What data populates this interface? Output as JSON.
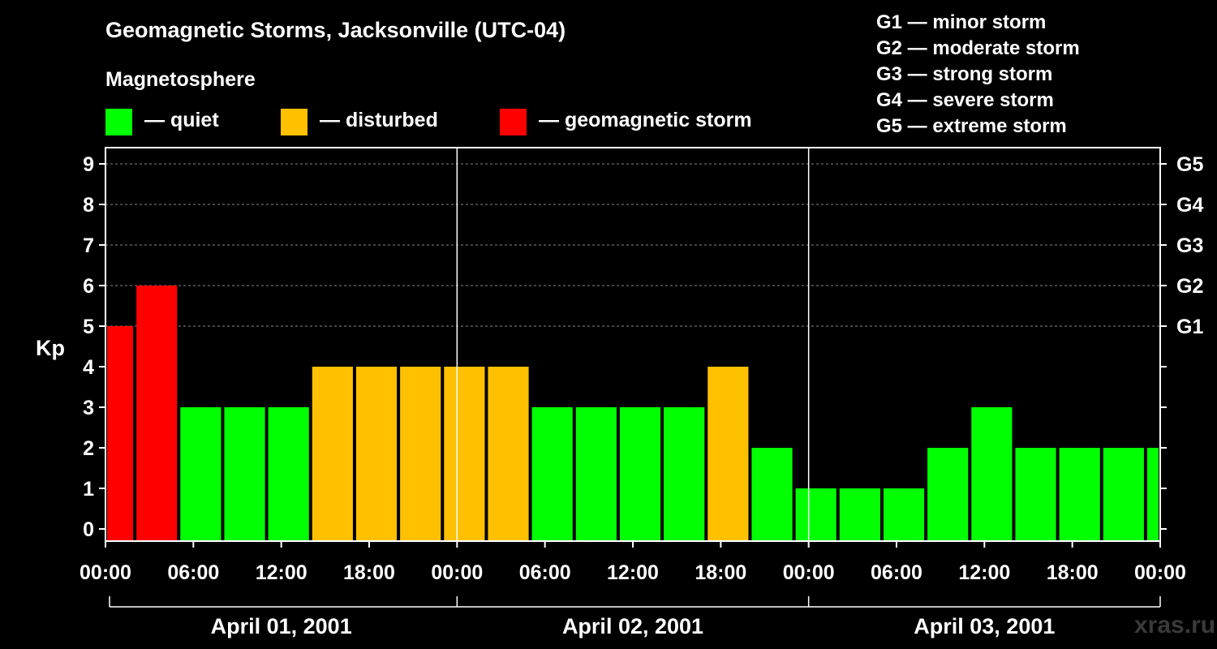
{
  "title": "Geomagnetic Storms, Jacksonville (UTC-04)",
  "legend": {
    "heading": "Magnetosphere",
    "items": [
      {
        "color": "#00ff00",
        "label": "— quiet"
      },
      {
        "color": "#ffc000",
        "label": "— disturbed"
      },
      {
        "color": "#ff0000",
        "label": "— geomagnetic storm"
      }
    ]
  },
  "storm_scale": [
    "G1 — minor storm",
    "G2 — moderate storm",
    "G3 — strong storm",
    "G4 — severe storm",
    "G5 — extreme storm"
  ],
  "watermark": "xras.ru",
  "chart_data": {
    "type": "bar",
    "ylabel": "Kp",
    "ylim": [
      0,
      9
    ],
    "y_ticks": [
      "0",
      "1",
      "2",
      "3",
      "4",
      "5",
      "6",
      "7",
      "8",
      "9"
    ],
    "right_axis_labels": [
      {
        "kp": 5,
        "label": "G1"
      },
      {
        "kp": 6,
        "label": "G2"
      },
      {
        "kp": 7,
        "label": "G3"
      },
      {
        "kp": 8,
        "label": "G4"
      },
      {
        "kp": 9,
        "label": "G5"
      }
    ],
    "x_tick_labels": [
      "00:00",
      "06:00",
      "12:00",
      "18:00",
      "00:00",
      "06:00",
      "12:00",
      "18:00",
      "00:00",
      "06:00",
      "12:00",
      "18:00",
      "00:00"
    ],
    "dates": [
      "April 01, 2001",
      "April 02, 2001",
      "April 03, 2001"
    ],
    "grid": true,
    "colors": {
      "quiet": "#00ff00",
      "disturbed": "#ffc000",
      "storm": "#ff0000"
    },
    "bars": [
      {
        "start_hour": 0,
        "end_hour": 2,
        "kp": 5
      },
      {
        "start_hour": 2,
        "end_hour": 5,
        "kp": 6
      },
      {
        "start_hour": 5,
        "end_hour": 8,
        "kp": 3
      },
      {
        "start_hour": 8,
        "end_hour": 11,
        "kp": 3
      },
      {
        "start_hour": 11,
        "end_hour": 14,
        "kp": 3
      },
      {
        "start_hour": 14,
        "end_hour": 17,
        "kp": 4
      },
      {
        "start_hour": 17,
        "end_hour": 20,
        "kp": 4
      },
      {
        "start_hour": 20,
        "end_hour": 23,
        "kp": 4
      },
      {
        "start_hour": 23,
        "end_hour": 26,
        "kp": 4
      },
      {
        "start_hour": 26,
        "end_hour": 29,
        "kp": 4
      },
      {
        "start_hour": 29,
        "end_hour": 32,
        "kp": 3
      },
      {
        "start_hour": 32,
        "end_hour": 35,
        "kp": 3
      },
      {
        "start_hour": 35,
        "end_hour": 38,
        "kp": 3
      },
      {
        "start_hour": 38,
        "end_hour": 41,
        "kp": 3
      },
      {
        "start_hour": 41,
        "end_hour": 44,
        "kp": 4
      },
      {
        "start_hour": 44,
        "end_hour": 47,
        "kp": 2
      },
      {
        "start_hour": 47,
        "end_hour": 50,
        "kp": 1
      },
      {
        "start_hour": 50,
        "end_hour": 53,
        "kp": 1
      },
      {
        "start_hour": 53,
        "end_hour": 56,
        "kp": 1
      },
      {
        "start_hour": 56,
        "end_hour": 59,
        "kp": 2
      },
      {
        "start_hour": 59,
        "end_hour": 62,
        "kp": 3
      },
      {
        "start_hour": 62,
        "end_hour": 65,
        "kp": 2
      },
      {
        "start_hour": 65,
        "end_hour": 68,
        "kp": 2
      },
      {
        "start_hour": 68,
        "end_hour": 71,
        "kp": 2
      },
      {
        "start_hour": 71,
        "end_hour": 72,
        "kp": 2
      }
    ]
  }
}
